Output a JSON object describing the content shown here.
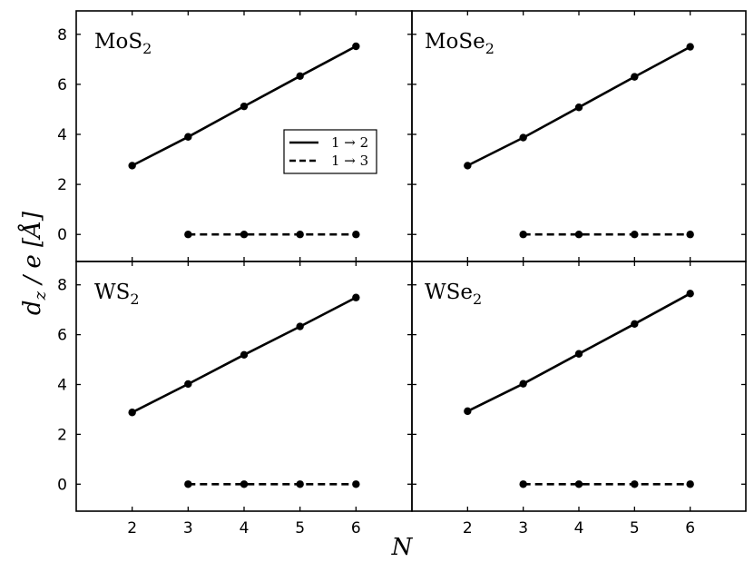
{
  "chart_data": {
    "type": "line",
    "xlabel": "N",
    "ylabel": "d_z / e [Å]",
    "xlim": [
      1,
      7
    ],
    "ylim": [
      -0.5,
      8.5
    ],
    "xticks": [
      "2",
      "3",
      "4",
      "5",
      "6"
    ],
    "yticks": [
      "0",
      "2",
      "4",
      "6",
      "8"
    ],
    "legend": {
      "placement": "top-left panel, right-center",
      "entries": [
        {
          "label": "1 → 2",
          "style": "solid"
        },
        {
          "label": "1 → 3",
          "style": "dashed"
        }
      ]
    },
    "panels": [
      {
        "label": "MoS",
        "label_sub": "2",
        "series": [
          {
            "name": "1 → 2",
            "style": "solid",
            "x": [
              2,
              3,
              4,
              5,
              6
            ],
            "y": [
              2.75,
              3.9,
              5.12,
              6.33,
              7.52
            ]
          },
          {
            "name": "1 → 3",
            "style": "dashed",
            "x": [
              3,
              4,
              5,
              6
            ],
            "y": [
              0,
              0,
              0,
              0
            ]
          }
        ]
      },
      {
        "label": "MoSe",
        "label_sub": "2",
        "series": [
          {
            "name": "1 → 2",
            "style": "solid",
            "x": [
              2,
              3,
              4,
              5,
              6
            ],
            "y": [
              2.75,
              3.87,
              5.08,
              6.3,
              7.5
            ]
          },
          {
            "name": "1 → 3",
            "style": "dashed",
            "x": [
              3,
              4,
              5,
              6
            ],
            "y": [
              0,
              0,
              0,
              0
            ]
          }
        ]
      },
      {
        "label": "WS",
        "label_sub": "2",
        "series": [
          {
            "name": "1 → 2",
            "style": "solid",
            "x": [
              2,
              3,
              4,
              5,
              6
            ],
            "y": [
              2.88,
              4.02,
              5.19,
              6.33,
              7.49
            ]
          },
          {
            "name": "1 → 3",
            "style": "dashed",
            "x": [
              3,
              4,
              5,
              6
            ],
            "y": [
              0,
              0,
              0,
              0
            ]
          }
        ]
      },
      {
        "label": "WSe",
        "label_sub": "2",
        "series": [
          {
            "name": "1 → 2",
            "style": "solid",
            "x": [
              2,
              3,
              4,
              5,
              6
            ],
            "y": [
              2.93,
              4.03,
              5.23,
              6.43,
              7.65
            ]
          },
          {
            "name": "1 → 3",
            "style": "dashed",
            "x": [
              3,
              4,
              5,
              6
            ],
            "y": [
              0,
              0,
              0,
              0
            ]
          }
        ]
      }
    ],
    "grid": false,
    "line_color": "#000000"
  }
}
